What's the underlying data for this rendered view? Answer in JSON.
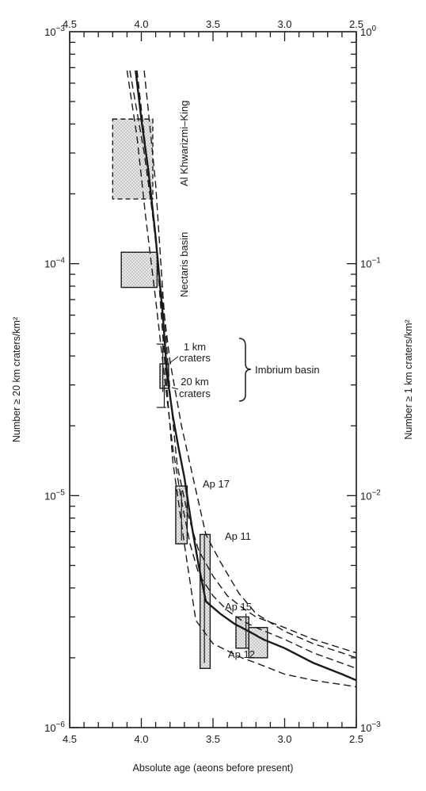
{
  "chart_data": {
    "type": "line",
    "xlabel": "Absolute age (aeons before present)",
    "ylabel_left": "Number ≥ 20 km craters/km²",
    "ylabel_right": "Number ≥ 1 km craters/km²",
    "x_ticks": [
      "4.5",
      "4.0",
      "3.5",
      "3.0",
      "2.5"
    ],
    "x_tick_values": [
      4.5,
      4.0,
      3.5,
      3.0,
      2.5
    ],
    "xlim": [
      4.5,
      2.5
    ],
    "x_reversed": true,
    "ylim_left": [
      1e-06,
      0.001
    ],
    "ylim_right": [
      0.001,
      1
    ],
    "y_scale": "log",
    "y_ticks_left": [
      {
        "value": 0.001,
        "base": "10",
        "exp": "−3"
      },
      {
        "value": 0.0001,
        "base": "10",
        "exp": "−4"
      },
      {
        "value": 1e-05,
        "base": "10",
        "exp": "−5"
      },
      {
        "value": 1e-06,
        "base": "10",
        "exp": "−6"
      }
    ],
    "y_ticks_right": [
      {
        "value": 1,
        "base": "10",
        "exp": "0"
      },
      {
        "value": 0.1,
        "base": "10",
        "exp": "−1"
      },
      {
        "value": 0.01,
        "base": "10",
        "exp": "−2"
      },
      {
        "value": 0.001,
        "base": "10",
        "exp": "−3"
      }
    ],
    "series": [
      {
        "style": "solid",
        "x": [
          4.04,
          4.0,
          3.95,
          3.9,
          3.85,
          3.82,
          3.78,
          3.74,
          3.7,
          3.65,
          3.6,
          3.55,
          3.45,
          3.35,
          3.25,
          3.15,
          3.0,
          2.8,
          2.6,
          2.5
        ],
        "y": [
          0.00068,
          0.00042,
          0.00025,
          0.00013,
          6e-05,
          3.3e-05,
          2.2e-05,
          1.6e-05,
          1.2e-05,
          7.5e-06,
          5e-06,
          3.5e-06,
          3.1e-06,
          2.8e-06,
          2.6e-06,
          2.4e-06,
          2.2e-06,
          1.9e-06,
          1.7e-06,
          1.6e-06
        ]
      },
      {
        "style": "dashed",
        "x": [
          4.03,
          3.98,
          3.93,
          3.87,
          3.8,
          3.72,
          3.64,
          3.55,
          3.45,
          3.32,
          3.2,
          3.0,
          2.8,
          2.6,
          2.5
        ],
        "y": [
          0.00068,
          0.00036,
          0.00018,
          8.5e-05,
          3.8e-05,
          2e-05,
          1.2e-05,
          6.8e-06,
          5.2e-06,
          3.8e-06,
          3.1e-06,
          2.6e-06,
          2.3e-06,
          2.1e-06,
          2e-06
        ]
      },
      {
        "style": "dashed",
        "x": [
          4.1,
          4.03,
          3.97,
          3.9,
          3.84,
          3.78,
          3.72,
          3.66,
          3.6,
          3.5,
          3.4,
          3.3,
          3.2,
          3.0,
          2.8,
          2.5
        ],
        "y": [
          0.00068,
          0.00035,
          0.00016,
          7e-05,
          3.3e-05,
          1.6e-05,
          9.5e-06,
          6.2e-06,
          4.6e-06,
          3.7e-06,
          3.2e-06,
          2.9e-06,
          2.7e-06,
          2.4e-06,
          2.1e-06,
          1.8e-06
        ]
      },
      {
        "style": "dashed",
        "x": [
          3.98,
          3.95,
          3.9,
          3.85,
          3.8,
          3.75,
          3.68,
          3.6,
          3.5,
          3.4,
          3.3,
          3.2,
          3.0,
          2.8,
          2.5
        ],
        "y": [
          0.00068,
          0.00045,
          0.00022,
          7.5e-05,
          2.8e-05,
          1.35e-05,
          8.5e-06,
          5.8e-06,
          4.5e-06,
          3.7e-06,
          3.3e-06,
          3e-06,
          2.7e-06,
          2.4e-06,
          2.1e-06
        ]
      },
      {
        "style": "dashed",
        "x": [
          4.08,
          3.98,
          3.9,
          3.84,
          3.78,
          3.7,
          3.62,
          3.5,
          3.3,
          3.2,
          3.0,
          2.8,
          2.5
        ],
        "y": [
          0.00068,
          0.0003,
          0.00013,
          4e-05,
          1.4e-05,
          6.2e-06,
          2.9e-06,
          2.3e-06,
          2e-06,
          1.9e-06,
          1.7e-06,
          1.6e-06,
          1.5e-06
        ]
      }
    ],
    "boxes": [
      {
        "name": "Al Khwarizmi–King",
        "x_min": 3.92,
        "x_max": 4.2,
        "y_min": 0.00019,
        "y_max": 0.00042,
        "dashed": true
      },
      {
        "name": "Nectaris basin",
        "x_min": 3.89,
        "x_max": 4.14,
        "y_min": 7.9e-05,
        "y_max": 0.000112,
        "dashed": false
      },
      {
        "name": "Imbrium basin 20 km",
        "x_min": 3.81,
        "x_max": 3.87,
        "y_min": 2.9e-05,
        "y_max": 3.7e-05,
        "dashed": false
      },
      {
        "name": "Ap 17",
        "x_min": 3.68,
        "x_max": 3.76,
        "y_min": 6.2e-06,
        "y_max": 1.1e-05,
        "dashed": false
      },
      {
        "name": "Ap 11",
        "x_min": 3.52,
        "x_max": 3.59,
        "y_min": 1.8e-06,
        "y_max": 6.8e-06,
        "dashed": false
      },
      {
        "name": "Ap 15",
        "x_min": 3.25,
        "x_max": 3.34,
        "y_min": 2.2e-06,
        "y_max": 3e-06,
        "dashed": false
      },
      {
        "name": "Ap 12",
        "x_min": 3.12,
        "x_max": 3.25,
        "y_min": 2e-06,
        "y_max": 2.7e-06,
        "dashed": false
      }
    ],
    "annotations": {
      "al_khwarizmi": "Al Khwarizmi–King",
      "nectaris": "Nectaris basin",
      "one_km_a": "1 km",
      "one_km_b": "craters",
      "twenty_km_a": "20 km",
      "twenty_km_b": "craters",
      "imbrium": "Imbrium basin",
      "ap17": "Ap 17",
      "ap11": "Ap 11",
      "ap15": "Ap 15",
      "ap12": "Ap 12"
    }
  }
}
